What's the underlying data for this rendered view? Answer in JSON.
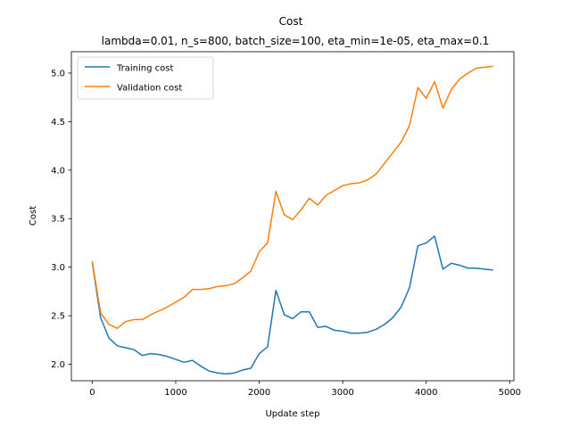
{
  "chart_data": {
    "type": "line",
    "title": "Cost",
    "subtitle": "lambda=0.01, n_s=800, batch_size=100, eta_min=1e-05, eta_max=0.1",
    "xlabel": "Update step",
    "ylabel": "Cost",
    "xlim": [
      -250,
      5050
    ],
    "ylim": [
      1.83,
      5.22
    ],
    "xticks": [
      0,
      1000,
      2000,
      3000,
      4000,
      5000
    ],
    "yticks": [
      2.0,
      2.5,
      3.0,
      3.5,
      4.0,
      4.5,
      5.0
    ],
    "xtick_labels": [
      "0",
      "1000",
      "2000",
      "3000",
      "4000",
      "5000"
    ],
    "ytick_labels": [
      "2.0",
      "2.5",
      "3.0",
      "3.5",
      "4.0",
      "4.5",
      "5.0"
    ],
    "grid": false,
    "legend_position": "top-left",
    "x": [
      0,
      100,
      200,
      300,
      400,
      500,
      600,
      700,
      800,
      900,
      1000,
      1100,
      1200,
      1300,
      1400,
      1500,
      1600,
      1700,
      1800,
      1900,
      2000,
      2100,
      2200,
      2300,
      2400,
      2500,
      2600,
      2700,
      2800,
      2900,
      3000,
      3100,
      3200,
      3300,
      3400,
      3500,
      3600,
      3700,
      3800,
      3900,
      4000,
      4100,
      4200,
      4300,
      4400,
      4500,
      4600,
      4700,
      4800
    ],
    "series": [
      {
        "name": "Training cost",
        "color": "#1f77b4",
        "values": [
          3.05,
          2.48,
          2.27,
          2.19,
          2.17,
          2.15,
          2.09,
          2.11,
          2.1,
          2.08,
          2.05,
          2.02,
          2.04,
          1.98,
          1.93,
          1.91,
          1.9,
          1.91,
          1.94,
          1.96,
          2.11,
          2.18,
          2.76,
          2.51,
          2.47,
          2.54,
          2.54,
          2.38,
          2.39,
          2.35,
          2.34,
          2.32,
          2.32,
          2.33,
          2.36,
          2.41,
          2.48,
          2.59,
          2.79,
          3.22,
          3.25,
          3.32,
          2.98,
          3.04,
          3.02,
          2.99,
          2.99,
          2.98,
          2.97
        ]
      },
      {
        "name": "Validation cost",
        "color": "#ff7f0e",
        "values": [
          3.06,
          2.53,
          2.41,
          2.37,
          2.44,
          2.46,
          2.46,
          2.51,
          2.55,
          2.59,
          2.64,
          2.69,
          2.77,
          2.77,
          2.78,
          2.8,
          2.81,
          2.83,
          2.89,
          2.96,
          3.16,
          3.25,
          3.78,
          3.54,
          3.49,
          3.59,
          3.71,
          3.64,
          3.74,
          3.79,
          3.84,
          3.86,
          3.87,
          3.9,
          3.96,
          4.07,
          4.18,
          4.29,
          4.46,
          4.85,
          4.74,
          4.91,
          4.64,
          4.83,
          4.94,
          5.0,
          5.05,
          5.06,
          5.07
        ]
      }
    ]
  }
}
